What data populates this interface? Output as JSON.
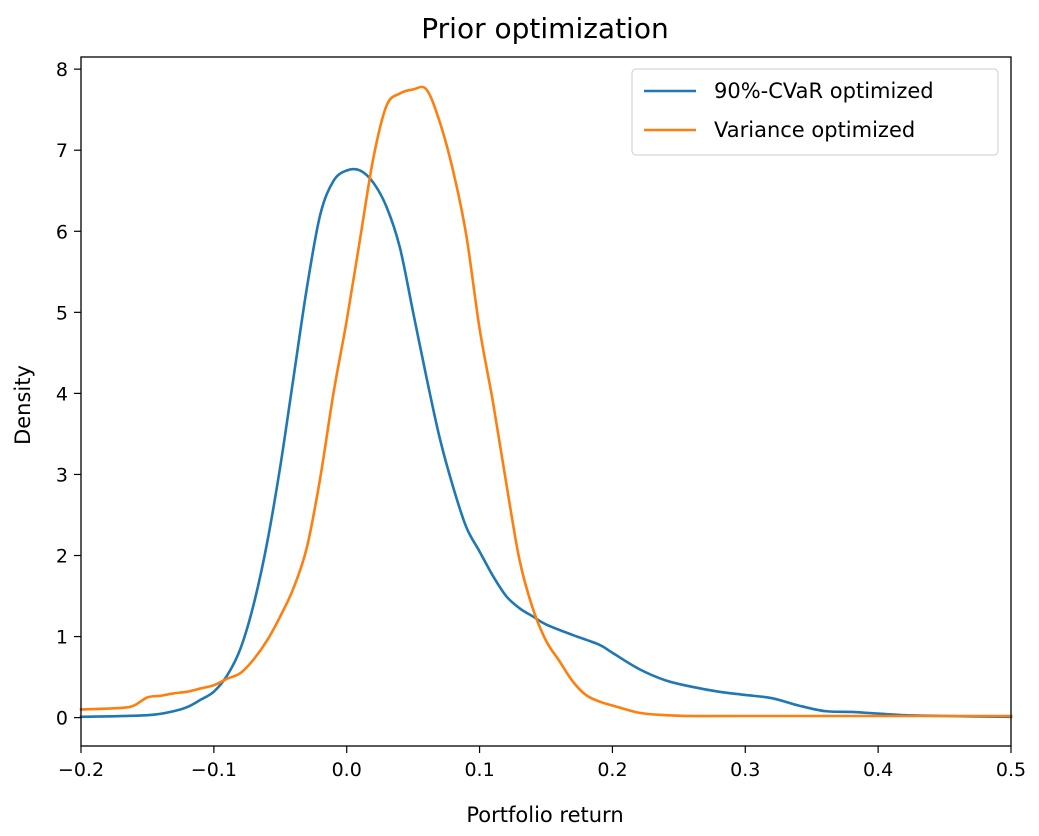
{
  "chart_data": {
    "type": "line",
    "title": "Prior optimization",
    "xlabel": "Portfolio return",
    "ylabel": "Density",
    "xlim": [
      -0.2,
      0.5
    ],
    "ylim": [
      -0.35,
      8.15
    ],
    "xticks": [
      -0.2,
      -0.1,
      0.0,
      0.1,
      0.2,
      0.3,
      0.4,
      0.5
    ],
    "xtick_labels": [
      "−0.2",
      "−0.1",
      "0.0",
      "0.1",
      "0.2",
      "0.3",
      "0.4",
      "0.5"
    ],
    "yticks": [
      0,
      1,
      2,
      3,
      4,
      5,
      6,
      7,
      8
    ],
    "ytick_labels": [
      "0",
      "1",
      "2",
      "3",
      "4",
      "5",
      "6",
      "7",
      "8"
    ],
    "grid": false,
    "legend_position": "top-right",
    "series": [
      {
        "name": "90%-CVaR optimized",
        "color": "#1f77b4",
        "x": [
          -0.2,
          -0.15,
          -0.13,
          -0.12,
          -0.11,
          -0.1,
          -0.09,
          -0.08,
          -0.07,
          -0.06,
          -0.05,
          -0.04,
          -0.03,
          -0.02,
          -0.01,
          0.0,
          0.01,
          0.02,
          0.03,
          0.04,
          0.05,
          0.06,
          0.07,
          0.08,
          0.09,
          0.1,
          0.11,
          0.12,
          0.13,
          0.14,
          0.15,
          0.17,
          0.19,
          0.2,
          0.22,
          0.24,
          0.26,
          0.28,
          0.3,
          0.32,
          0.34,
          0.36,
          0.38,
          0.4,
          0.42,
          0.45,
          0.5
        ],
        "y": [
          0.01,
          0.03,
          0.08,
          0.13,
          0.22,
          0.32,
          0.52,
          0.85,
          1.4,
          2.15,
          3.1,
          4.2,
          5.3,
          6.2,
          6.62,
          6.75,
          6.75,
          6.6,
          6.3,
          5.8,
          5.0,
          4.2,
          3.45,
          2.85,
          2.35,
          2.05,
          1.75,
          1.5,
          1.35,
          1.25,
          1.15,
          1.02,
          0.9,
          0.8,
          0.6,
          0.46,
          0.38,
          0.32,
          0.28,
          0.24,
          0.15,
          0.08,
          0.07,
          0.05,
          0.03,
          0.02,
          0.01
        ]
      },
      {
        "name": "Variance optimized",
        "color": "#ff7f0e",
        "x": [
          -0.2,
          -0.17,
          -0.16,
          -0.15,
          -0.14,
          -0.13,
          -0.12,
          -0.11,
          -0.1,
          -0.09,
          -0.08,
          -0.07,
          -0.06,
          -0.05,
          -0.04,
          -0.03,
          -0.02,
          -0.01,
          0.0,
          0.01,
          0.02,
          0.03,
          0.04,
          0.05,
          0.06,
          0.07,
          0.08,
          0.09,
          0.1,
          0.11,
          0.12,
          0.13,
          0.14,
          0.15,
          0.16,
          0.17,
          0.18,
          0.19,
          0.2,
          0.22,
          0.24,
          0.26,
          0.3,
          0.4,
          0.5
        ],
        "y": [
          0.1,
          0.12,
          0.15,
          0.25,
          0.27,
          0.3,
          0.32,
          0.36,
          0.4,
          0.48,
          0.55,
          0.72,
          0.95,
          1.25,
          1.6,
          2.1,
          2.95,
          4.0,
          4.9,
          5.9,
          6.9,
          7.55,
          7.7,
          7.75,
          7.75,
          7.35,
          6.75,
          5.95,
          4.8,
          3.9,
          2.9,
          1.95,
          1.35,
          0.95,
          0.7,
          0.45,
          0.28,
          0.2,
          0.15,
          0.06,
          0.03,
          0.02,
          0.02,
          0.02,
          0.02
        ]
      }
    ]
  }
}
